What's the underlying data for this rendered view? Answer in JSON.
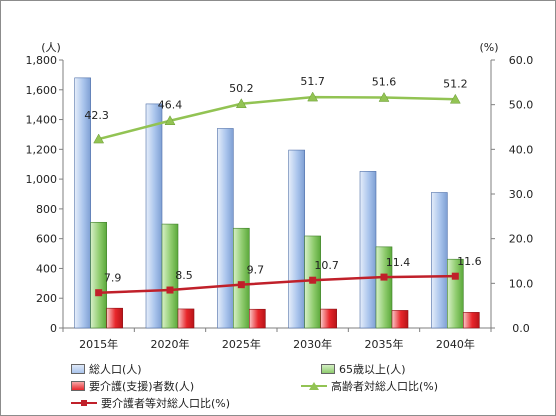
{
  "chart_data": {
    "type": "bar+line",
    "categories": [
      "2015年",
      "2020年",
      "2025年",
      "2030年",
      "2035年",
      "2040年"
    ],
    "left_axis": {
      "unit": "(人)",
      "min": 0,
      "max": 1800,
      "step": 200,
      "tick_labels": [
        "0",
        "200",
        "400",
        "600",
        "800",
        "1,000",
        "1,200",
        "1,400",
        "1,600",
        "1,800"
      ]
    },
    "right_axis": {
      "unit": "(%)",
      "min": 0,
      "max": 60,
      "step": 10,
      "tick_labels": [
        "0.0",
        "10.0",
        "20.0",
        "30.0",
        "40.0",
        "50.0",
        "60.0"
      ]
    },
    "series": [
      {
        "name": "総人口(人)",
        "type": "bar",
        "axis": "left",
        "color": "#a9c4ec",
        "values": [
          1680,
          1505,
          1340,
          1195,
          1052,
          910
        ]
      },
      {
        "name": "65歳以上(人)",
        "type": "bar",
        "axis": "left",
        "color": "#8fcc6e",
        "values": [
          710,
          698,
          670,
          618,
          545,
          462
        ]
      },
      {
        "name": "要介護(支援)者数(人)",
        "type": "bar",
        "axis": "left",
        "color": "#e8262b",
        "values": [
          133,
          128,
          126,
          127,
          118,
          105
        ]
      },
      {
        "name": "高齢者対総人口比(%)",
        "type": "line",
        "axis": "right",
        "color": "#92c353",
        "marker": "triangle",
        "values": [
          42.3,
          46.4,
          50.2,
          51.7,
          51.6,
          51.2
        ],
        "labels": [
          "42.3",
          "46.4",
          "50.2",
          "51.7",
          "51.6",
          "51.2"
        ]
      },
      {
        "name": "要介護者等対総人口比(%)",
        "type": "line",
        "axis": "right",
        "color": "#c0202a",
        "marker": "square",
        "values": [
          7.9,
          8.5,
          9.7,
          10.7,
          11.4,
          11.6
        ],
        "labels": [
          "7.9",
          "8.5",
          "9.7",
          "10.7",
          "11.4",
          "11.6"
        ]
      }
    ],
    "legend_position": "bottom",
    "grid": false
  }
}
